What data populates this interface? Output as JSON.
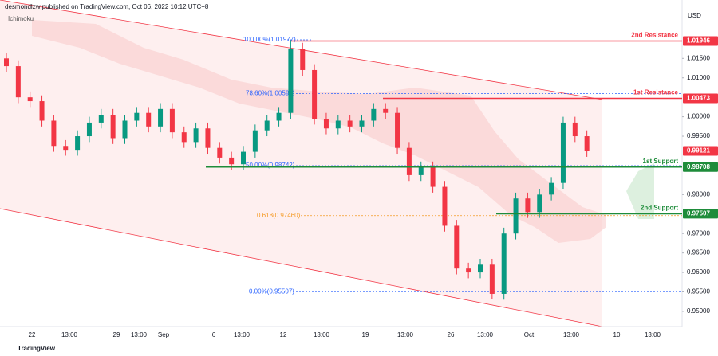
{
  "chart_data": {
    "type": "candlestick",
    "header": "desmondlzw published on TradingView.com, Oct 06, 2022 10:12 UTC+8",
    "indicator": "Ichimoku",
    "currency": "USD",
    "footer": "TradingView",
    "up_color": "#089981",
    "down_color": "#f23645",
    "x_labels": [
      "22",
      "13:00",
      "29",
      "13:00",
      "Sep",
      "6",
      "13:00",
      "12",
      "13:00",
      "19",
      "13:00",
      "26",
      "13:00",
      "Oct",
      "13:00",
      "10",
      "13:00"
    ],
    "open": [
      1.015,
      1.013,
      1.005,
      1.004,
      0.999,
      0.9925,
      0.9915,
      0.995,
      0.9985,
      1.0005,
      0.9945,
      0.999,
      1.001,
      0.9975,
      1.002,
      0.996,
      0.9935,
      0.997,
      0.992,
      0.9895,
      0.9878,
      0.991,
      0.9965,
      0.999,
      1.001,
      1.0175,
      1.012,
      0.9995,
      0.997,
      0.999,
      0.9975,
      0.999,
      1.002,
      1.001,
      0.992,
      0.985,
      0.987,
      0.982,
      0.972,
      0.961,
      0.96,
      0.962,
      0.9545,
      0.97,
      0.979,
      0.9755,
      0.98,
      0.983,
      0.9985,
      0.995
    ],
    "high": [
      1.0165,
      1.0145,
      1.0065,
      1.0055,
      1.0005,
      0.994,
      0.9965,
      1.0,
      1.002,
      1.002,
      1.0005,
      1.0025,
      1.0025,
      1.0035,
      1.0035,
      0.9975,
      0.9985,
      0.9985,
      0.9935,
      0.991,
      0.9925,
      0.998,
      1.0005,
      1.0025,
      1.0197,
      1.019,
      1.0135,
      1.001,
      1.0005,
      1.0005,
      1.0005,
      1.0035,
      1.0035,
      1.0025,
      0.9935,
      0.9885,
      0.9885,
      0.9835,
      0.9735,
      0.9625,
      0.9635,
      0.9635,
      0.9715,
      0.9805,
      0.9805,
      0.9815,
      0.9845,
      1.0,
      1.0,
      0.9965
    ],
    "low": [
      1.0115,
      1.0035,
      1.0025,
      0.9975,
      0.991,
      0.99,
      0.99,
      0.9935,
      0.997,
      0.993,
      0.993,
      0.9975,
      0.996,
      0.996,
      0.9945,
      0.992,
      0.992,
      0.9905,
      0.988,
      0.9863,
      0.9863,
      0.9895,
      0.995,
      0.9975,
      0.9995,
      1.0105,
      0.998,
      0.9955,
      0.9955,
      0.996,
      0.996,
      0.9975,
      0.9995,
      0.9905,
      0.9835,
      0.9835,
      0.9805,
      0.9705,
      0.9595,
      0.9585,
      0.9585,
      0.9531,
      0.953,
      0.9685,
      0.974,
      0.974,
      0.9785,
      0.9815,
      0.9935,
      0.9897
    ],
    "close": [
      1.013,
      1.005,
      1.004,
      0.999,
      0.9925,
      0.9915,
      0.995,
      0.9985,
      1.0005,
      0.9945,
      0.999,
      1.001,
      0.9975,
      1.002,
      0.996,
      0.9935,
      0.997,
      0.992,
      0.9895,
      0.9878,
      0.991,
      0.9965,
      0.999,
      1.001,
      1.0175,
      1.012,
      0.9995,
      0.997,
      0.999,
      0.9975,
      0.999,
      1.002,
      1.001,
      0.992,
      0.985,
      0.987,
      0.982,
      0.972,
      0.961,
      0.96,
      0.962,
      0.9545,
      0.97,
      0.979,
      0.9755,
      0.98,
      0.983,
      0.9985,
      0.995,
      0.9912
    ],
    "levels": [
      {
        "name": "2nd Resistance",
        "price": 1.01946,
        "color": "#f23645"
      },
      {
        "name": "1st Resistance",
        "price": 1.00473,
        "color": "#f23645"
      },
      {
        "name": "1st Support",
        "price": 0.98708,
        "color": "#1e8c3a"
      },
      {
        "name": "2nd Support",
        "price": 0.97507,
        "color": "#1e8c3a"
      }
    ],
    "current_price": 0.99121,
    "current_color": "#f23645",
    "fib_levels": [
      {
        "value": 1.01977,
        "label": "100.00%(1.01977)",
        "color": "#2962ff"
      },
      {
        "value": 1.00593,
        "label": "78.60%(1.00593)",
        "color": "#2962ff"
      },
      {
        "value": 0.98742,
        "label": "50.00%(0.98742)",
        "color": "#2962ff"
      },
      {
        "value": 0.9746,
        "label": "0.618(0.97460)",
        "color": "#f59a23"
      },
      {
        "value": 0.95507,
        "label": "0.00%(0.95507)",
        "color": "#2962ff"
      }
    ],
    "ylim": [
      0.9461,
      1.03
    ],
    "yticks": [
      {
        "value": 1.015,
        "label": "1.01500"
      },
      {
        "value": 1.01,
        "label": "1.01000"
      },
      {
        "value": 1.0,
        "label": "1.00000"
      },
      {
        "value": 0.995,
        "label": "0.99500"
      },
      {
        "value": 0.98,
        "label": "0.98000"
      },
      {
        "value": 0.97,
        "label": "0.97000"
      },
      {
        "value": 0.965,
        "label": "0.96500"
      },
      {
        "value": 0.96,
        "label": "0.96000"
      },
      {
        "value": 0.955,
        "label": "0.95500"
      },
      {
        "value": 0.95,
        "label": "0.95000"
      }
    ]
  }
}
